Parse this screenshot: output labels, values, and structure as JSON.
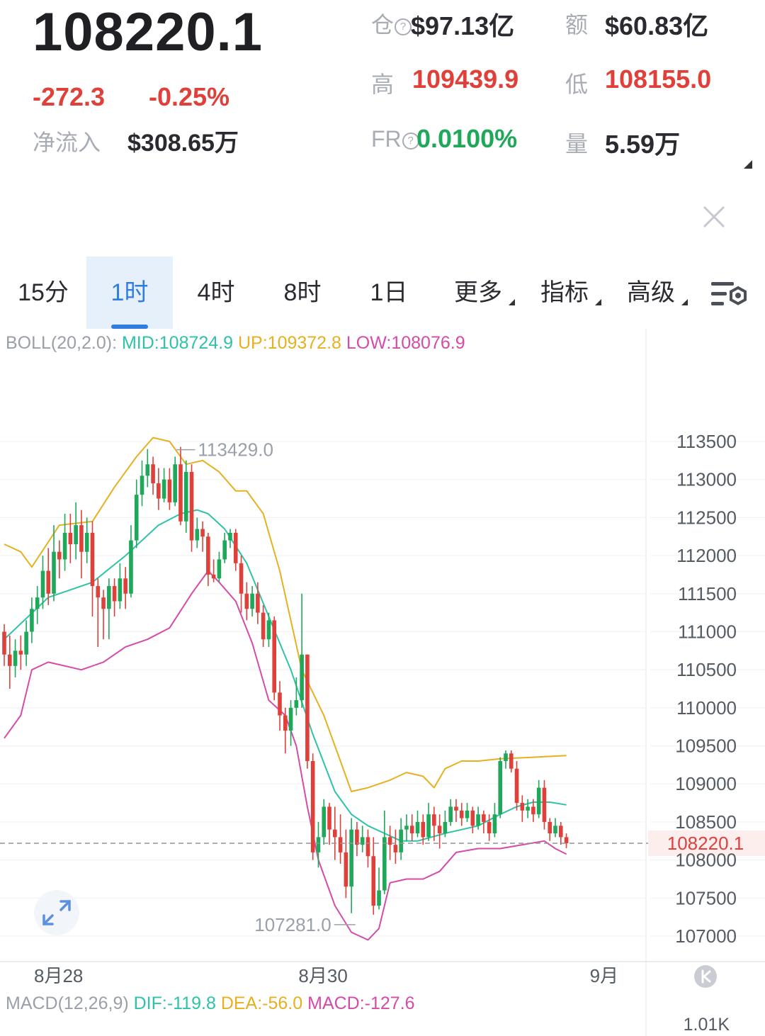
{
  "header": {
    "price": "108220.1",
    "change": "-272.3",
    "change_pct": "-0.25%",
    "inflow_label": "净流入",
    "inflow_value": "$308.65万",
    "stats": {
      "oi_label": "仓",
      "oi_value": "$97.13亿",
      "turnover_label": "额",
      "turnover_value": "$60.83亿",
      "high_label": "高",
      "high_value": "109439.9",
      "low_label": "低",
      "low_value": "108155.0",
      "fr_label": "FR",
      "fr_value": "0.0100%",
      "volume_label": "量",
      "volume_value": "5.59万"
    }
  },
  "tabs": [
    {
      "label": "15分",
      "active": false
    },
    {
      "label": "1时",
      "active": true
    },
    {
      "label": "4时",
      "active": false
    },
    {
      "label": "8时",
      "active": false
    },
    {
      "label": "1日",
      "active": false
    },
    {
      "label": "更多",
      "active": false,
      "dropdown": true
    },
    {
      "label": "指标",
      "active": false,
      "dropdown": true
    },
    {
      "label": "高级",
      "active": false,
      "dropdown": true
    }
  ],
  "colors": {
    "up": "#1fa85a",
    "down": "#e0403a",
    "mid": "#2fc2a8",
    "upper": "#e6b020",
    "lower": "#d64aa8",
    "accent": "#2f7de1"
  },
  "boll_legend": {
    "name": "BOLL(20,2.0):",
    "mid": "MID:108724.9",
    "up": "UP:109372.8",
    "low": "LOW:108076.9"
  },
  "macd_legend": {
    "name": "MACD(12,26,9)",
    "dif": "DIF:-119.8",
    "dea": "DEA:-56.0",
    "macd": "MACD:-127.6"
  },
  "macd_axis_label": "1.01K",
  "chart_data": {
    "type": "candlestick",
    "ylim": [
      106800,
      113800
    ],
    "y_ticks": [
      113500,
      113000,
      112500,
      112000,
      111500,
      111000,
      110500,
      110000,
      109500,
      109000,
      108500,
      108000,
      107500,
      107000
    ],
    "x_labels": [
      {
        "label": "8月28",
        "index": 6
      },
      {
        "label": "8月30",
        "index": 54
      },
      {
        "label": "9月",
        "index": 105
      }
    ],
    "last_price": 108220.1,
    "last_price_label": "108220.1",
    "max_annotation": {
      "label": "113429.0",
      "value": 113429.0,
      "index": 30
    },
    "min_annotation": {
      "label": "107281.0",
      "value": 107281.0,
      "index": 65
    },
    "candles": [
      [
        111000,
        110700,
        111100,
        110550
      ],
      [
        110700,
        110550,
        110950,
        110250
      ],
      [
        110550,
        110750,
        110900,
        110400
      ],
      [
        110750,
        110700,
        110950,
        110500
      ],
      [
        110700,
        111000,
        111150,
        110550
      ],
      [
        111000,
        111300,
        111450,
        110850
      ],
      [
        111300,
        111450,
        111600,
        111100
      ],
      [
        111450,
        111800,
        112000,
        111300
      ],
      [
        111800,
        111500,
        112100,
        111350
      ],
      [
        111500,
        112050,
        112400,
        111400
      ],
      [
        112050,
        111950,
        112200,
        111700
      ],
      [
        111950,
        112300,
        112550,
        111800
      ],
      [
        112300,
        112150,
        112550,
        111900
      ],
      [
        112150,
        112400,
        112700,
        111950
      ],
      [
        112400,
        112050,
        112600,
        111700
      ],
      [
        112050,
        112300,
        112500,
        111900
      ],
      [
        112300,
        111600,
        112450,
        111200
      ],
      [
        111600,
        111450,
        111700,
        110800
      ],
      [
        111450,
        111300,
        111550,
        110900
      ],
      [
        111300,
        111600,
        111700,
        110900
      ],
      [
        111600,
        111400,
        111700,
        111200
      ],
      [
        111400,
        111700,
        111900,
        111300
      ],
      [
        111700,
        111500,
        111850,
        111300
      ],
      [
        111500,
        112200,
        112400,
        111450
      ],
      [
        112200,
        112800,
        113000,
        112100
      ],
      [
        112800,
        113050,
        113250,
        112650
      ],
      [
        113050,
        113200,
        113400,
        112900
      ],
      [
        113200,
        112950,
        113300,
        112800
      ],
      [
        112950,
        112750,
        113150,
        112600
      ],
      [
        112750,
        113000,
        113150,
        112700
      ],
      [
        113000,
        112700,
        113150,
        112600
      ],
      [
        112700,
        113200,
        113300,
        112650
      ],
      [
        113200,
        112450,
        113429,
        112400
      ],
      [
        112450,
        113100,
        113250,
        112300
      ],
      [
        113100,
        112200,
        113200,
        112050
      ],
      [
        112200,
        112350,
        112500,
        112100
      ],
      [
        112350,
        112250,
        112450,
        112050
      ],
      [
        112250,
        111750,
        112300,
        111600
      ],
      [
        111750,
        111700,
        111950,
        111650
      ],
      [
        111700,
        111950,
        112050,
        111650
      ],
      [
        111950,
        112200,
        112300,
        111900
      ],
      [
        112200,
        112300,
        112350,
        112100
      ],
      [
        112300,
        111900,
        112350,
        111800
      ],
      [
        111900,
        111500,
        112000,
        111250
      ],
      [
        111500,
        111300,
        111650,
        111150
      ],
      [
        111300,
        111500,
        111600,
        111200
      ],
      [
        111500,
        111250,
        111650,
        111100
      ],
      [
        111250,
        110900,
        111350,
        110800
      ],
      [
        110900,
        111150,
        111250,
        110800
      ],
      [
        111150,
        110200,
        111200,
        110100
      ],
      [
        110200,
        109900,
        110350,
        109700
      ],
      [
        109900,
        109700,
        110000,
        109400
      ],
      [
        109700,
        110000,
        110100,
        109500
      ],
      [
        110000,
        110100,
        110400,
        109900
      ],
      [
        110100,
        110700,
        111500,
        110000
      ],
      [
        110700,
        109300,
        110700,
        109200
      ],
      [
        109300,
        108100,
        109400,
        108000
      ],
      [
        108100,
        108300,
        108500,
        107900
      ],
      [
        108300,
        108700,
        108800,
        108200
      ],
      [
        108700,
        108400,
        108750,
        108200
      ],
      [
        108400,
        108300,
        108700,
        108000
      ],
      [
        108300,
        108100,
        108600,
        107950
      ],
      [
        108100,
        107650,
        108400,
        107500
      ],
      [
        107650,
        108400,
        108550,
        107300
      ],
      [
        108400,
        108200,
        108500,
        108050
      ],
      [
        108200,
        108300,
        108450,
        108100
      ],
      [
        108300,
        108050,
        108400,
        107900
      ],
      [
        108050,
        107400,
        108300,
        107281
      ],
      [
        107400,
        107600,
        107900,
        107350
      ],
      [
        107600,
        108300,
        108650,
        107550
      ],
      [
        108300,
        108200,
        108450,
        108000
      ],
      [
        108200,
        108100,
        108400,
        107950
      ],
      [
        108100,
        108400,
        108550,
        108000
      ],
      [
        108400,
        108450,
        108600,
        108250
      ],
      [
        108450,
        108350,
        108600,
        108250
      ],
      [
        108350,
        108500,
        108650,
        108300
      ],
      [
        108500,
        108300,
        108600,
        108200
      ],
      [
        108300,
        108600,
        108750,
        108250
      ],
      [
        108600,
        108450,
        108700,
        108250
      ],
      [
        108450,
        108350,
        108600,
        108150
      ],
      [
        108350,
        108500,
        108650,
        108300
      ],
      [
        108500,
        108700,
        108800,
        108450
      ],
      [
        108700,
        108650,
        108800,
        108500
      ],
      [
        108650,
        108550,
        108750,
        108450
      ],
      [
        108550,
        108650,
        108750,
        108500
      ],
      [
        108650,
        108450,
        108700,
        108350
      ],
      [
        108450,
        108600,
        108700,
        108400
      ],
      [
        108600,
        108500,
        108650,
        108350
      ],
      [
        108500,
        108350,
        108600,
        108250
      ],
      [
        108350,
        108600,
        108750,
        108300
      ],
      [
        108600,
        109300,
        109350,
        108550
      ],
      [
        109300,
        109400,
        109439.9,
        109200
      ],
      [
        109400,
        109200,
        109439.9,
        109150
      ],
      [
        109200,
        108750,
        109300,
        108650
      ],
      [
        108750,
        108650,
        108850,
        108500
      ],
      [
        108650,
        108700,
        108800,
        108550
      ],
      [
        108700,
        108600,
        108800,
        108500
      ],
      [
        108600,
        108950,
        109050,
        108550
      ],
      [
        108950,
        108500,
        109050,
        108400
      ],
      [
        108500,
        108350,
        108550,
        108250
      ],
      [
        108350,
        108450,
        108550,
        108300
      ],
      [
        108450,
        108300,
        108500,
        108200
      ],
      [
        108300,
        108220.1,
        108350,
        108155
      ]
    ],
    "boll_mid": [
      [
        0,
        110900
      ],
      [
        8,
        111450
      ],
      [
        16,
        111650
      ],
      [
        22,
        112000
      ],
      [
        28,
        112400
      ],
      [
        32,
        112550
      ],
      [
        35,
        112600
      ],
      [
        37,
        112550
      ],
      [
        40,
        112350
      ],
      [
        44,
        111900
      ],
      [
        48,
        111200
      ],
      [
        52,
        110500
      ],
      [
        56,
        109650
      ],
      [
        60,
        108900
      ],
      [
        63,
        108600
      ],
      [
        66,
        108450
      ],
      [
        69,
        108350
      ],
      [
        72,
        108250
      ],
      [
        75,
        108250
      ],
      [
        80,
        108350
      ],
      [
        86,
        108450
      ],
      [
        90,
        108600
      ],
      [
        93,
        108700
      ],
      [
        96,
        108760
      ],
      [
        99,
        108760
      ],
      [
        102,
        108724.9
      ]
    ],
    "boll_up": [
      [
        0,
        112150
      ],
      [
        3,
        112050
      ],
      [
        5,
        111850
      ],
      [
        10,
        112400
      ],
      [
        16,
        112450
      ],
      [
        20,
        112900
      ],
      [
        24,
        113300
      ],
      [
        27,
        113550
      ],
      [
        30,
        113500
      ],
      [
        33,
        113200
      ],
      [
        36,
        113250
      ],
      [
        39,
        113100
      ],
      [
        42,
        112850
      ],
      [
        44,
        112850
      ],
      [
        47,
        112550
      ],
      [
        50,
        111800
      ],
      [
        54,
        110500
      ],
      [
        58,
        109900
      ],
      [
        61,
        109300
      ],
      [
        63,
        108900
      ],
      [
        66,
        108950
      ],
      [
        70,
        109050
      ],
      [
        73,
        109150
      ],
      [
        76,
        109100
      ],
      [
        78,
        108950
      ],
      [
        80,
        109200
      ],
      [
        83,
        109300
      ],
      [
        86,
        109300
      ],
      [
        90,
        109330
      ],
      [
        96,
        109350
      ],
      [
        102,
        109372.8
      ]
    ],
    "boll_low": [
      [
        0,
        109600
      ],
      [
        3,
        109900
      ],
      [
        5,
        110500
      ],
      [
        8,
        110600
      ],
      [
        14,
        110500
      ],
      [
        18,
        110600
      ],
      [
        22,
        110800
      ],
      [
        26,
        110900
      ],
      [
        30,
        111050
      ],
      [
        34,
        111500
      ],
      [
        37,
        111800
      ],
      [
        39,
        111650
      ],
      [
        42,
        111400
      ],
      [
        45,
        110850
      ],
      [
        48,
        110100
      ],
      [
        51,
        109900
      ],
      [
        53,
        109500
      ],
      [
        55,
        108700
      ],
      [
        57,
        108000
      ],
      [
        60,
        107400
      ],
      [
        63,
        107050
      ],
      [
        66,
        106950
      ],
      [
        68,
        107100
      ],
      [
        70,
        107700
      ],
      [
        73,
        107750
      ],
      [
        76,
        107750
      ],
      [
        79,
        107850
      ],
      [
        82,
        108100
      ],
      [
        86,
        108150
      ],
      [
        90,
        108150
      ],
      [
        94,
        108200
      ],
      [
        98,
        108250
      ],
      [
        100,
        108150
      ],
      [
        102,
        108076.9
      ]
    ]
  }
}
